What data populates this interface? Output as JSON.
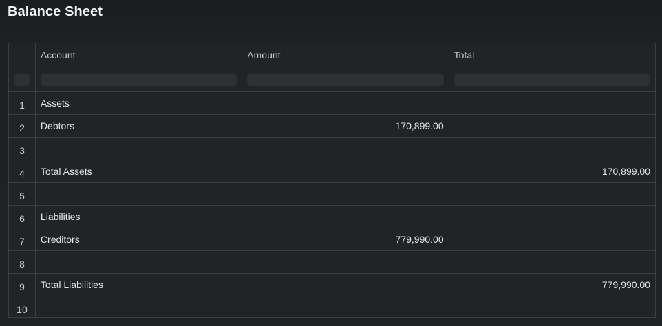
{
  "page": {
    "title": "Balance Sheet"
  },
  "table": {
    "columns": [
      "",
      "Account",
      "Amount",
      "Total"
    ],
    "rows": [
      {
        "index": "1",
        "account": "Assets",
        "amount": "",
        "total": ""
      },
      {
        "index": "2",
        "account": "Debtors",
        "amount": "170,899.00",
        "total": ""
      },
      {
        "index": "3",
        "account": "",
        "amount": "",
        "total": ""
      },
      {
        "index": "4",
        "account": "Total Assets",
        "amount": "",
        "total": "170,899.00"
      },
      {
        "index": "5",
        "account": "",
        "amount": "",
        "total": ""
      },
      {
        "index": "6",
        "account": "Liabilities",
        "amount": "",
        "total": ""
      },
      {
        "index": "7",
        "account": "Creditors",
        "amount": "779,990.00",
        "total": ""
      },
      {
        "index": "8",
        "account": "",
        "amount": "",
        "total": ""
      },
      {
        "index": "9",
        "account": "Total Liabilities",
        "amount": "",
        "total": "779,990.00"
      },
      {
        "index": "10",
        "account": "",
        "amount": "",
        "total": ""
      }
    ]
  }
}
